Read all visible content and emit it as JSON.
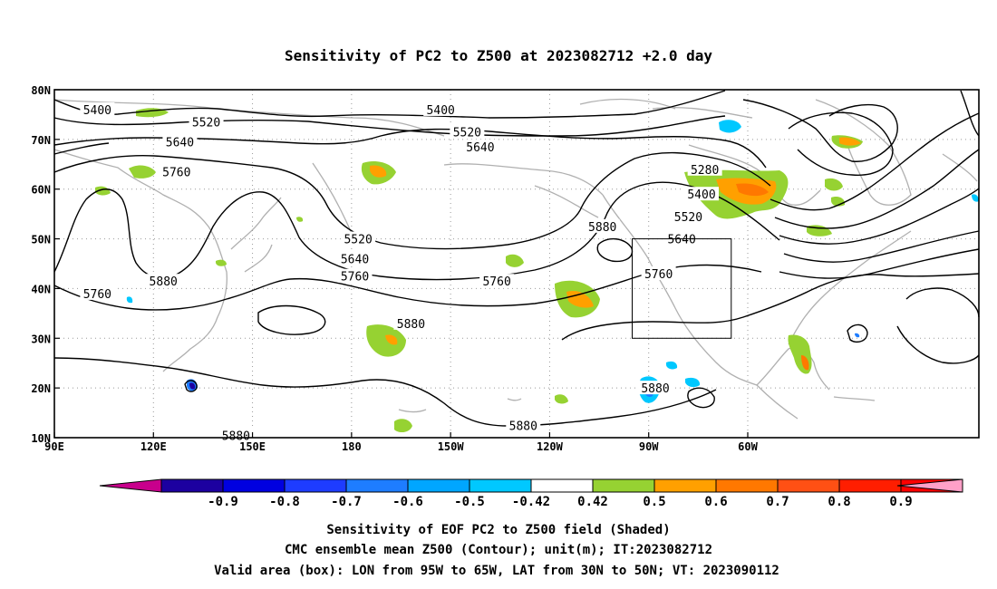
{
  "title": "Sensitivity of PC2 to Z500 at 2023082712 +2.0 day",
  "x_ticks": [
    "90E",
    "120E",
    "150E",
    "180",
    "150W",
    "120W",
    "90W",
    "60W"
  ],
  "y_ticks": [
    "80N",
    "70N",
    "60N",
    "50N",
    "40N",
    "30N",
    "20N",
    "10N"
  ],
  "contour_labels": [
    {
      "text": "5400",
      "lon": 103,
      "lat": 76
    },
    {
      "text": "5520",
      "lon": 136,
      "lat": 73.5
    },
    {
      "text": "5640",
      "lon": 128,
      "lat": 69.5
    },
    {
      "text": "5760",
      "lon": 127,
      "lat": 63.5
    },
    {
      "text": "5400",
      "lon": -153,
      "lat": 76
    },
    {
      "text": "5520",
      "lon": -145,
      "lat": 71.5
    },
    {
      "text": "5640",
      "lon": -141,
      "lat": 68.5
    },
    {
      "text": "5520",
      "lon": -178,
      "lat": 50
    },
    {
      "text": "5640",
      "lon": -179,
      "lat": 46
    },
    {
      "text": "5760",
      "lon": -179,
      "lat": 42.5
    },
    {
      "text": "5880",
      "lon": 123,
      "lat": 41.5
    },
    {
      "text": "5760",
      "lon": 103,
      "lat": 39
    },
    {
      "text": "5880",
      "lon": -162,
      "lat": 33
    },
    {
      "text": "5760",
      "lon": -136,
      "lat": 41.5
    },
    {
      "text": "5880",
      "lon": -104,
      "lat": 52.5
    },
    {
      "text": "5280",
      "lon": -73,
      "lat": 64
    },
    {
      "text": "5400",
      "lon": -74,
      "lat": 59
    },
    {
      "text": "5520",
      "lon": -78,
      "lat": 54.5
    },
    {
      "text": "5640",
      "lon": -80,
      "lat": 50
    },
    {
      "text": "5760",
      "lon": -87,
      "lat": 43
    },
    {
      "text": "5880",
      "lon": -88,
      "lat": 20
    },
    {
      "text": "5880",
      "lon": -128,
      "lat": 12.5
    },
    {
      "text": "5880",
      "lon": 145,
      "lat": 10.5
    }
  ],
  "valid_box": {
    "lon": [
      -95,
      -65
    ],
    "lat": [
      30,
      50
    ]
  },
  "colorbar": {
    "labels": [
      "-0.9",
      "-0.8",
      "-0.7",
      "-0.6",
      "-0.5",
      "-0.42",
      "0.42",
      "0.5",
      "0.6",
      "0.7",
      "0.8",
      "0.9"
    ],
    "colors": [
      "#c8008c",
      "#1c00a0",
      "#0000e0",
      "#1e3cff",
      "#1e7dff",
      "#00a6ff",
      "#00c8ff",
      "#ffffff",
      "#96d232",
      "#ffa000",
      "#ff7800",
      "#ff5014",
      "#ff1e00",
      "#ff0000",
      "#ffa0c8"
    ]
  },
  "footer": [
    "Sensitivity of EOF PC2 to Z500 field (Shaded)",
    "CMC ensemble mean Z500 (Contour); unit(m); IT:2023082712",
    "Valid area (box): LON from 95W to 65W, LAT from 30N to 50N; VT: 2023090112"
  ]
}
